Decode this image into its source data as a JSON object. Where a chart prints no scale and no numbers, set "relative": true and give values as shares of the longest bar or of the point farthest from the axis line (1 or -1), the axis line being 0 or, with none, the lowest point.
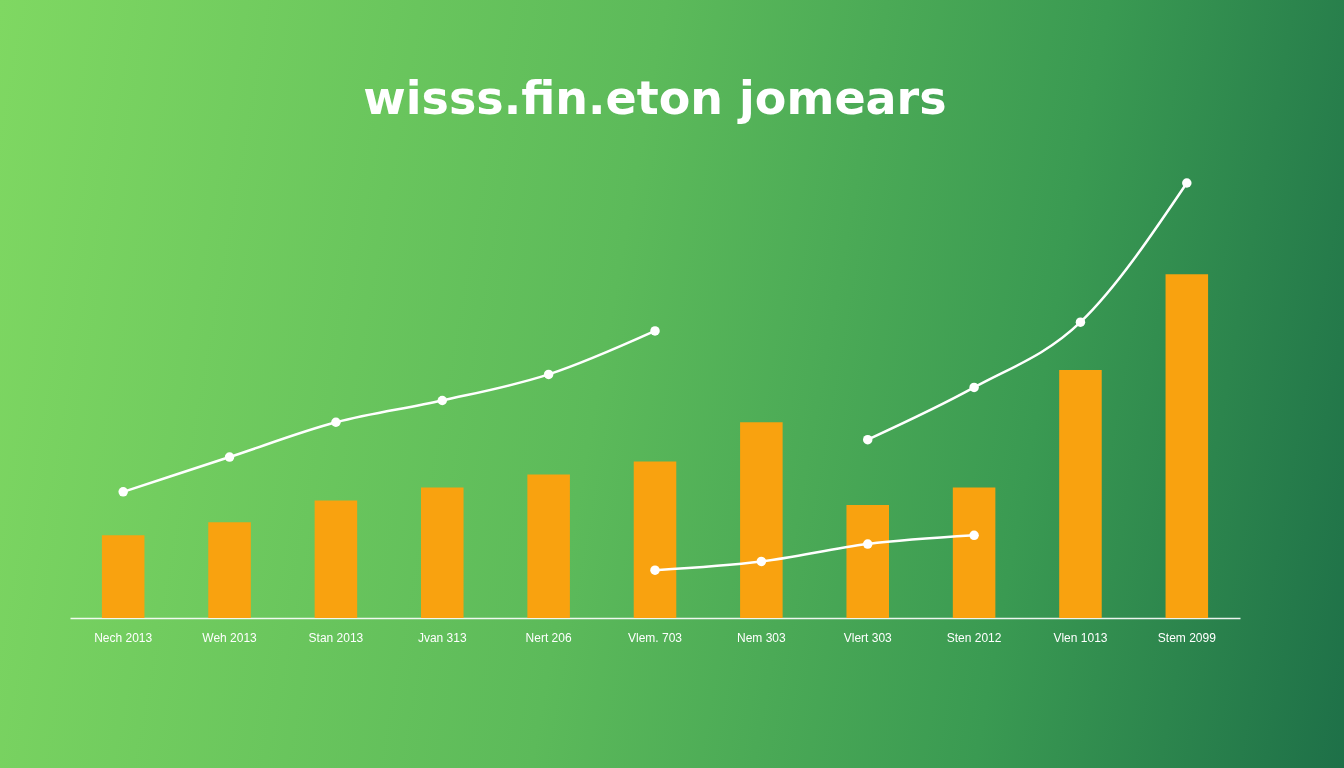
{
  "chart_data": {
    "type": "bar",
    "title": "wisss.fin.eton jomears",
    "categories": [
      "Nech 2013",
      "Weh 2013",
      "Stan 2013",
      "Jvan 313",
      "Nert 206",
      "Vlem. 703",
      "Nem 303",
      "Vlert 303",
      "Sten 2012",
      "Vlen 1013",
      "Stem 2099"
    ],
    "relative": true,
    "tick_labels": "x",
    "grid": false,
    "marker": "circle",
    "series": [
      {
        "color": "#f9a20f",
        "values": [
          0.19,
          0.22,
          0.27,
          0.3,
          0.33,
          0.36,
          0.45,
          0.26,
          0.3,
          0.57,
          0.79
        ]
      },
      {
        "type": "line",
        "color": "#ffffff",
        "values": [
          0.29,
          0.37,
          0.45,
          0.5,
          0.56,
          0.66,
          null,
          0.41,
          0.53,
          0.68,
          1
        ]
      },
      {
        "type": "line",
        "color": "#ffffff",
        "values": [
          null,
          null,
          null,
          null,
          null,
          0.11,
          0.13,
          0.17,
          0.19,
          null,
          null
        ]
      }
    ]
  }
}
